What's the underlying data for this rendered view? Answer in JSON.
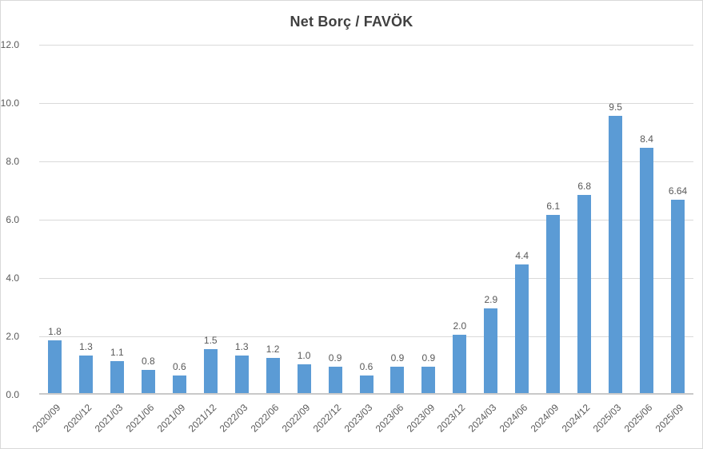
{
  "chart_data": {
    "type": "bar",
    "title": "Net Borç / FAVÖK",
    "categories": [
      "2020/09",
      "2020/12",
      "2021/03",
      "2021/06",
      "2021/09",
      "2021/12",
      "2022/03",
      "2022/06",
      "2022/09",
      "2022/12",
      "2023/03",
      "2023/06",
      "2023/09",
      "2023/12",
      "2024/03",
      "2024/06",
      "2024/09",
      "2024/12",
      "2025/03",
      "2025/06",
      "2025/09"
    ],
    "values": [
      1.8,
      1.3,
      1.1,
      0.8,
      0.6,
      1.5,
      1.3,
      1.2,
      1.0,
      0.9,
      0.6,
      0.9,
      0.9,
      2.0,
      2.9,
      4.4,
      6.1,
      6.8,
      9.5,
      8.4,
      6.64
    ],
    "bar_labels": [
      "1.8",
      "1.3",
      "1.1",
      "0.8",
      "0.6",
      "1.5",
      "1.3",
      "1.2",
      "1.0",
      "0.9",
      "0.6",
      "0.9",
      "0.9",
      "2.0",
      "2.9",
      "4.4",
      "6.1",
      "6.8",
      "9.5",
      "8.4",
      "6.64"
    ],
    "xlabel": "",
    "ylabel": "",
    "ylim": [
      0,
      12
    ],
    "ytick_step": 2,
    "ytick_labels": [
      "0.0",
      "2.0",
      "4.0",
      "6.0",
      "8.0",
      "10.0",
      "12.0"
    ],
    "grid": true,
    "legend_position": "none",
    "colors": {
      "bar": "#5B9BD5",
      "gridline": "#D9D9D9",
      "axis_line": "#C9C9C9",
      "tick_text": "#595959",
      "value_text": "#595959",
      "title_text": "#404040",
      "frame_border": "#D9D9D9",
      "background": "#FFFFFF"
    }
  }
}
